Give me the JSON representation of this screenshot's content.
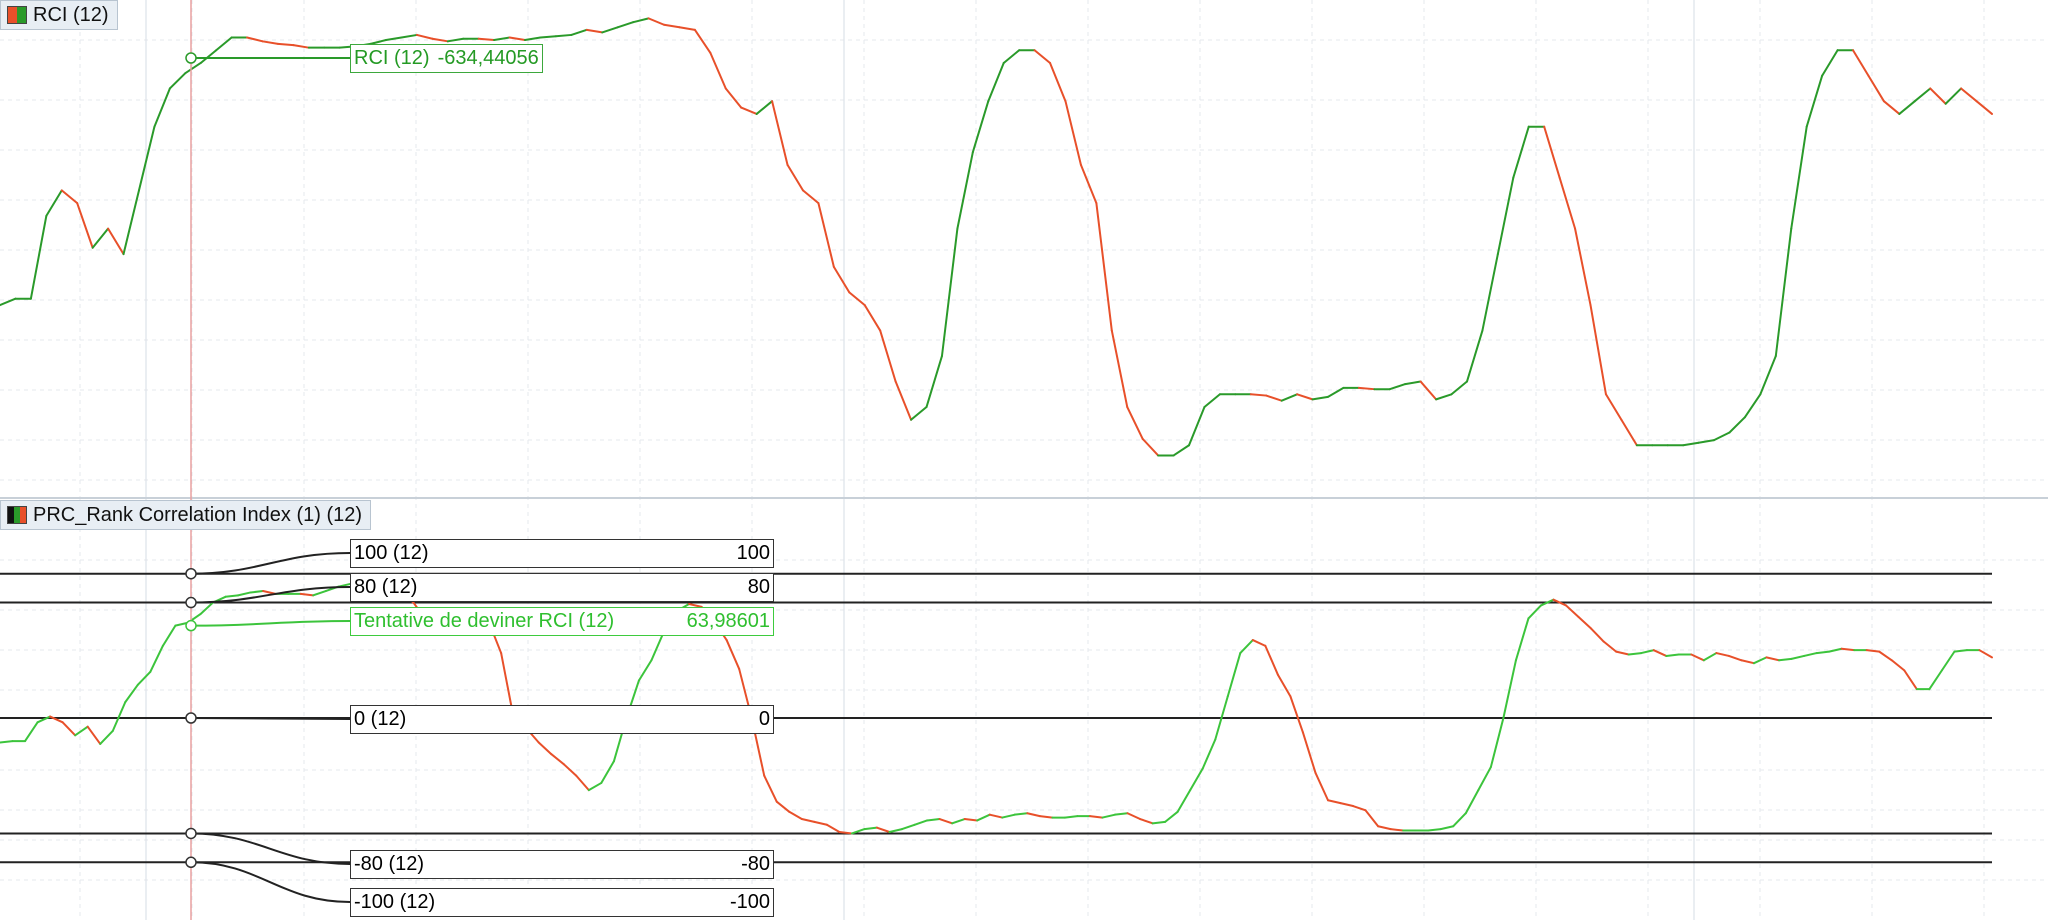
{
  "colors": {
    "up": "#2a9a2a",
    "down": "#e8502a",
    "up_light": "#3cc43c",
    "level_line": "#222222",
    "crosshair": "#e8a0a0",
    "grid": "#e6e9ee",
    "pane_separator": "#c8d0d8"
  },
  "top_pane": {
    "tab_label": "RCI (12)",
    "tab_icon": "red-green-square-icon",
    "cursor_label": "RCI (12)",
    "cursor_value": "-634,44056"
  },
  "bottom_pane": {
    "tab_label": "PRC_Rank Correlation Index (1) (12)",
    "tab_icon": "black-green-red-bars-icon",
    "cursor_series_label": "Tentative de deviner RCI (12)",
    "cursor_series_value": "63,98601",
    "levels": [
      {
        "name": "100 (12)",
        "value": "100"
      },
      {
        "name": "80 (12)",
        "value": "80"
      },
      {
        "name": "0 (12)",
        "value": "0"
      },
      {
        "name": "-80 (12)",
        "value": "-80"
      },
      {
        "name": "-100 (12)",
        "value": "-100"
      }
    ]
  },
  "chart_data": [
    {
      "type": "line",
      "series": [
        {
          "name": "RCI (12)",
          "values": [
            -860,
            -855,
            -855,
            -790,
            -770,
            -780,
            -815,
            -800,
            -820,
            -770,
            -720,
            -690,
            -678,
            -670,
            -660,
            -650,
            -650,
            -653,
            -655,
            -656,
            -658,
            -658,
            -658,
            -657,
            -655,
            -652,
            -650,
            -648,
            -651,
            -653,
            -651,
            -651,
            -652,
            -650,
            -652,
            -650,
            -649,
            -648,
            -644,
            -646,
            -642,
            -638,
            -635,
            -640,
            -642,
            -644,
            -662,
            -690,
            -705,
            -710,
            -700,
            -750,
            -770,
            -780,
            -830,
            -850,
            -860,
            -880,
            -920,
            -950,
            -940,
            -900,
            -800,
            -740,
            -700,
            -670,
            -660,
            -660,
            -670,
            -700,
            -750,
            -780,
            -880,
            -940,
            -965,
            -978,
            -978,
            -970,
            -940,
            -930,
            -930,
            -930,
            -931,
            -935,
            -930,
            -934,
            -932,
            -925,
            -925,
            -926,
            -926,
            -922,
            -920,
            -934,
            -930,
            -920,
            -880,
            -820,
            -760,
            -720,
            -720,
            -760,
            -800,
            -860,
            -930,
            -950,
            -970,
            -970,
            -970,
            -970,
            -968,
            -966,
            -960,
            -948,
            -930,
            -900,
            -800,
            -720,
            -680,
            -660,
            -660,
            -680,
            -700,
            -710,
            -700,
            -690,
            -702,
            -690,
            -700,
            -710
          ]
        }
      ]
    },
    {
      "type": "line",
      "ylim": [
        -100,
        100
      ],
      "series": [
        {
          "name": "Tentative de deviner RCI (12)",
          "values": [
            -17,
            -16,
            -16,
            -3,
            1,
            -3,
            -12,
            -6,
            -18,
            -9,
            11,
            23,
            32,
            50,
            64,
            66,
            72,
            80,
            84,
            85,
            87,
            88,
            86,
            86,
            86,
            85,
            88,
            91,
            93,
            94,
            92,
            91,
            87,
            80,
            68,
            68,
            68,
            68,
            68,
            67,
            45,
            0,
            -7,
            -17,
            -25,
            -32,
            -40,
            -50,
            -45,
            -30,
            0,
            26,
            40,
            60,
            74,
            79,
            77,
            67,
            54,
            34,
            0,
            -40,
            -58,
            -65,
            -70,
            -72,
            -74,
            -79,
            -80,
            -77,
            -76,
            -79,
            -77,
            -74,
            -71,
            -70,
            -73,
            -70,
            -71,
            -67,
            -69,
            -67,
            -66,
            -68,
            -69,
            -69,
            -68,
            -68,
            -69,
            -67,
            -66,
            -70,
            -73,
            -72,
            -65,
            -50,
            -35,
            -15,
            15,
            45,
            54,
            50,
            30,
            15,
            -10,
            -38,
            -57,
            -59,
            -61,
            -64,
            -75,
            -77,
            -78,
            -78,
            -78,
            -77,
            -75,
            -66,
            -50,
            -34,
            0,
            40,
            69,
            78,
            82,
            78,
            70,
            62,
            53,
            46,
            44,
            45,
            47,
            43,
            44,
            44,
            40,
            45,
            43,
            40,
            38,
            42,
            40,
            41,
            43,
            45,
            46,
            48,
            47,
            47,
            46,
            40,
            33,
            20,
            20,
            33,
            46,
            47,
            47,
            42
          ]
        }
      ]
    }
  ]
}
